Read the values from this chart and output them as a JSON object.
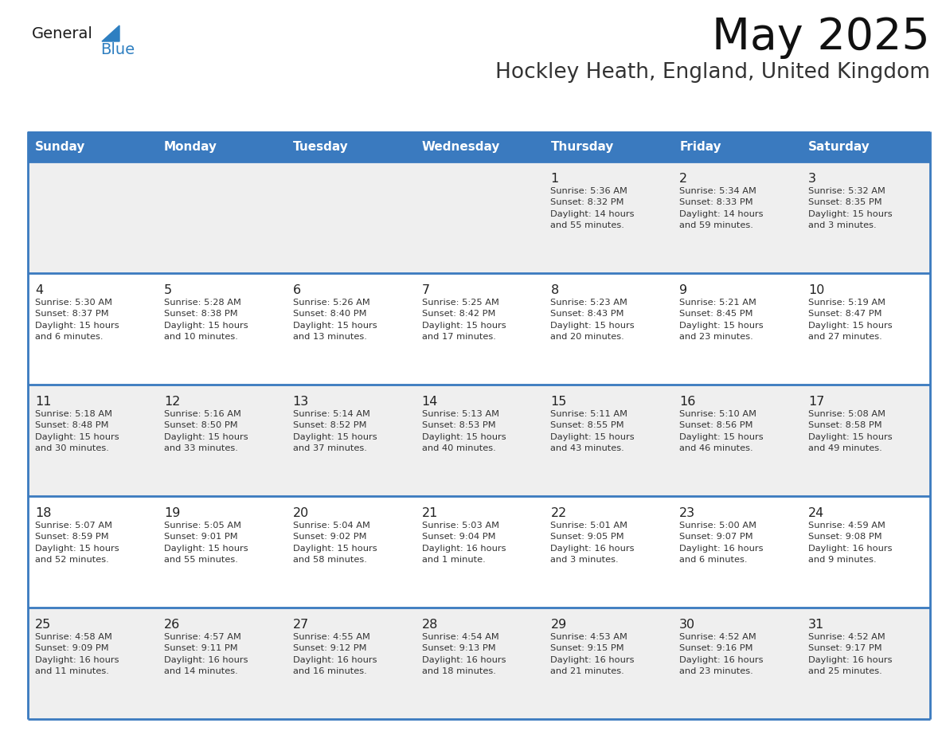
{
  "title": "May 2025",
  "subtitle": "Hockley Heath, England, United Kingdom",
  "header_bg": "#3a7abf",
  "header_text_color": "#ffffff",
  "cell_bg_odd": "#efefef",
  "cell_bg_even": "#ffffff",
  "text_color": "#333333",
  "days_of_week": [
    "Sunday",
    "Monday",
    "Tuesday",
    "Wednesday",
    "Thursday",
    "Friday",
    "Saturday"
  ],
  "weeks": [
    [
      {
        "day": "",
        "info": ""
      },
      {
        "day": "",
        "info": ""
      },
      {
        "day": "",
        "info": ""
      },
      {
        "day": "",
        "info": ""
      },
      {
        "day": "1",
        "info": "Sunrise: 5:36 AM\nSunset: 8:32 PM\nDaylight: 14 hours\nand 55 minutes."
      },
      {
        "day": "2",
        "info": "Sunrise: 5:34 AM\nSunset: 8:33 PM\nDaylight: 14 hours\nand 59 minutes."
      },
      {
        "day": "3",
        "info": "Sunrise: 5:32 AM\nSunset: 8:35 PM\nDaylight: 15 hours\nand 3 minutes."
      }
    ],
    [
      {
        "day": "4",
        "info": "Sunrise: 5:30 AM\nSunset: 8:37 PM\nDaylight: 15 hours\nand 6 minutes."
      },
      {
        "day": "5",
        "info": "Sunrise: 5:28 AM\nSunset: 8:38 PM\nDaylight: 15 hours\nand 10 minutes."
      },
      {
        "day": "6",
        "info": "Sunrise: 5:26 AM\nSunset: 8:40 PM\nDaylight: 15 hours\nand 13 minutes."
      },
      {
        "day": "7",
        "info": "Sunrise: 5:25 AM\nSunset: 8:42 PM\nDaylight: 15 hours\nand 17 minutes."
      },
      {
        "day": "8",
        "info": "Sunrise: 5:23 AM\nSunset: 8:43 PM\nDaylight: 15 hours\nand 20 minutes."
      },
      {
        "day": "9",
        "info": "Sunrise: 5:21 AM\nSunset: 8:45 PM\nDaylight: 15 hours\nand 23 minutes."
      },
      {
        "day": "10",
        "info": "Sunrise: 5:19 AM\nSunset: 8:47 PM\nDaylight: 15 hours\nand 27 minutes."
      }
    ],
    [
      {
        "day": "11",
        "info": "Sunrise: 5:18 AM\nSunset: 8:48 PM\nDaylight: 15 hours\nand 30 minutes."
      },
      {
        "day": "12",
        "info": "Sunrise: 5:16 AM\nSunset: 8:50 PM\nDaylight: 15 hours\nand 33 minutes."
      },
      {
        "day": "13",
        "info": "Sunrise: 5:14 AM\nSunset: 8:52 PM\nDaylight: 15 hours\nand 37 minutes."
      },
      {
        "day": "14",
        "info": "Sunrise: 5:13 AM\nSunset: 8:53 PM\nDaylight: 15 hours\nand 40 minutes."
      },
      {
        "day": "15",
        "info": "Sunrise: 5:11 AM\nSunset: 8:55 PM\nDaylight: 15 hours\nand 43 minutes."
      },
      {
        "day": "16",
        "info": "Sunrise: 5:10 AM\nSunset: 8:56 PM\nDaylight: 15 hours\nand 46 minutes."
      },
      {
        "day": "17",
        "info": "Sunrise: 5:08 AM\nSunset: 8:58 PM\nDaylight: 15 hours\nand 49 minutes."
      }
    ],
    [
      {
        "day": "18",
        "info": "Sunrise: 5:07 AM\nSunset: 8:59 PM\nDaylight: 15 hours\nand 52 minutes."
      },
      {
        "day": "19",
        "info": "Sunrise: 5:05 AM\nSunset: 9:01 PM\nDaylight: 15 hours\nand 55 minutes."
      },
      {
        "day": "20",
        "info": "Sunrise: 5:04 AM\nSunset: 9:02 PM\nDaylight: 15 hours\nand 58 minutes."
      },
      {
        "day": "21",
        "info": "Sunrise: 5:03 AM\nSunset: 9:04 PM\nDaylight: 16 hours\nand 1 minute."
      },
      {
        "day": "22",
        "info": "Sunrise: 5:01 AM\nSunset: 9:05 PM\nDaylight: 16 hours\nand 3 minutes."
      },
      {
        "day": "23",
        "info": "Sunrise: 5:00 AM\nSunset: 9:07 PM\nDaylight: 16 hours\nand 6 minutes."
      },
      {
        "day": "24",
        "info": "Sunrise: 4:59 AM\nSunset: 9:08 PM\nDaylight: 16 hours\nand 9 minutes."
      }
    ],
    [
      {
        "day": "25",
        "info": "Sunrise: 4:58 AM\nSunset: 9:09 PM\nDaylight: 16 hours\nand 11 minutes."
      },
      {
        "day": "26",
        "info": "Sunrise: 4:57 AM\nSunset: 9:11 PM\nDaylight: 16 hours\nand 14 minutes."
      },
      {
        "day": "27",
        "info": "Sunrise: 4:55 AM\nSunset: 9:12 PM\nDaylight: 16 hours\nand 16 minutes."
      },
      {
        "day": "28",
        "info": "Sunrise: 4:54 AM\nSunset: 9:13 PM\nDaylight: 16 hours\nand 18 minutes."
      },
      {
        "day": "29",
        "info": "Sunrise: 4:53 AM\nSunset: 9:15 PM\nDaylight: 16 hours\nand 21 minutes."
      },
      {
        "day": "30",
        "info": "Sunrise: 4:52 AM\nSunset: 9:16 PM\nDaylight: 16 hours\nand 23 minutes."
      },
      {
        "day": "31",
        "info": "Sunrise: 4:52 AM\nSunset: 9:17 PM\nDaylight: 16 hours\nand 25 minutes."
      }
    ]
  ],
  "logo_general_color": "#1a1a1a",
  "logo_blue_color": "#2e7fc1",
  "logo_triangle_color": "#2e7fc1",
  "fig_width": 11.88,
  "fig_height": 9.18,
  "dpi": 100
}
